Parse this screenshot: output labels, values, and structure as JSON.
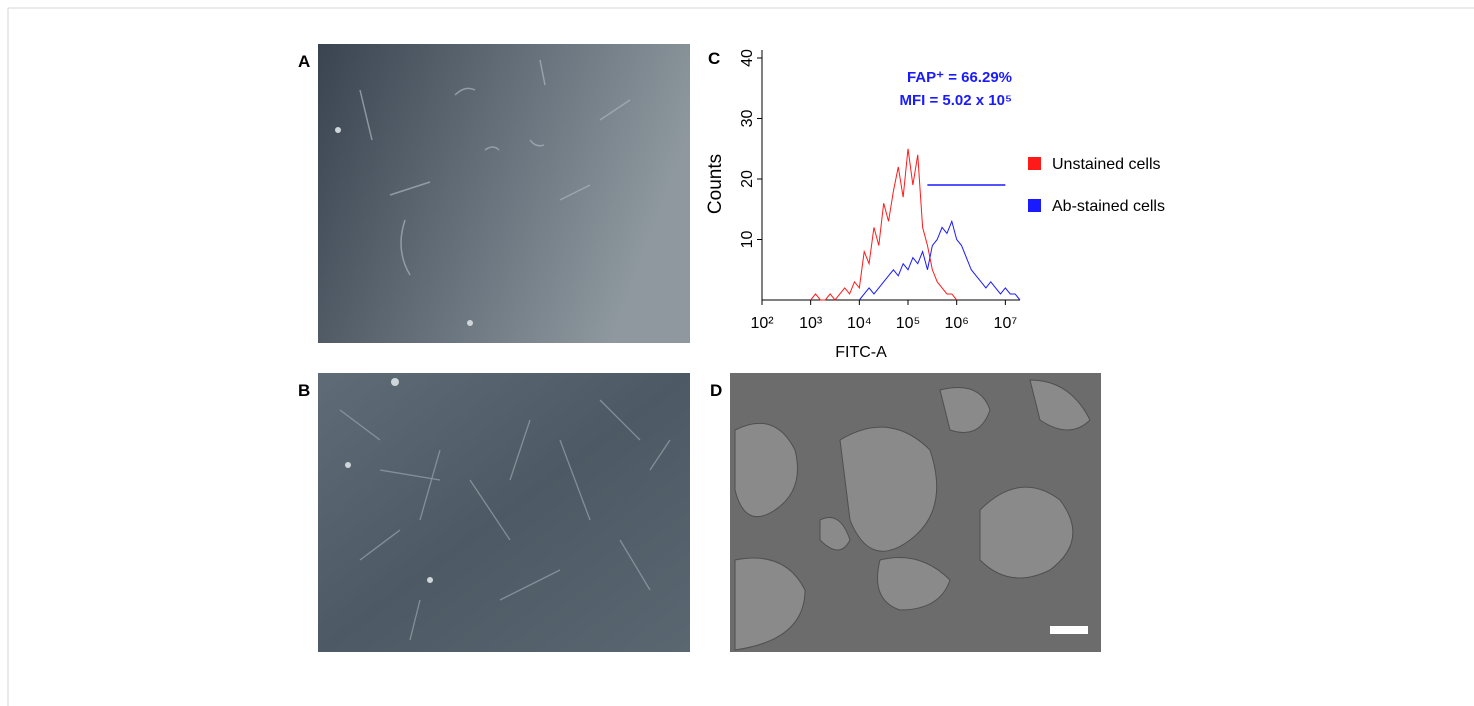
{
  "panel_labels": [
    "A",
    "B",
    "C",
    "D"
  ],
  "chart_data": {
    "type": "line",
    "xscale": "log",
    "xlabel": "FITC-A",
    "ylabel": "Counts",
    "annotations": [
      "FAP⁺ = 66.29%",
      "MFI = 5.02 x 10⁵"
    ],
    "annotation_color": "#1a1aff",
    "xlim": [
      100,
      20000000
    ],
    "ylim": [
      0,
      40
    ],
    "xticks": [
      {
        "value": 100,
        "label": "10²"
      },
      {
        "value": 1000,
        "label": "10³"
      },
      {
        "value": 10000,
        "label": "10⁴"
      },
      {
        "value": 100000,
        "label": "10⁵"
      },
      {
        "value": 1000000,
        "label": "10⁶"
      },
      {
        "value": 10000000,
        "label": "10⁷"
      }
    ],
    "yticks": [
      10,
      20,
      30,
      40
    ],
    "gate": {
      "y": 19,
      "x": [
        250000,
        10000000
      ],
      "color": "#1a1aff"
    },
    "series": [
      {
        "name": "Unstained cells",
        "color": "#ff1a1a",
        "x": [
          1000,
          1259,
          1585,
          1995,
          2512,
          3162,
          3981,
          5012,
          6310,
          7943,
          10000,
          12589,
          15849,
          19953,
          25119,
          31623,
          39811,
          50119,
          63096,
          79433,
          100000,
          125893,
          158489,
          199526,
          251189,
          316228,
          398107,
          501187,
          630957,
          794328,
          1000000
        ],
        "values": [
          0,
          1,
          0,
          0,
          1,
          0,
          1,
          2,
          1,
          3,
          2,
          8,
          6,
          12,
          9,
          16,
          13,
          18,
          22,
          17,
          25,
          19,
          24,
          12,
          9,
          5,
          3,
          2,
          1,
          1,
          0
        ]
      },
      {
        "name": "Ab-stained cells",
        "color": "#1a1aff",
        "x": [
          10000,
          12589,
          15849,
          19953,
          25119,
          31623,
          39811,
          50119,
          63096,
          79433,
          100000,
          125893,
          158489,
          199526,
          251189,
          316228,
          398107,
          501187,
          630957,
          794328,
          1000000,
          1258925,
          1584893,
          1995262,
          2511886,
          3162278,
          3981072,
          5011872,
          6309573,
          7943282,
          10000000,
          12589254,
          15848932,
          19952623
        ],
        "values": [
          0,
          1,
          2,
          1,
          2,
          3,
          4,
          5,
          4,
          6,
          5,
          7,
          6,
          8,
          5,
          9,
          10,
          12,
          11,
          13,
          10,
          9,
          7,
          5,
          4,
          3,
          2,
          3,
          2,
          1,
          2,
          1,
          1,
          0
        ]
      }
    ]
  }
}
